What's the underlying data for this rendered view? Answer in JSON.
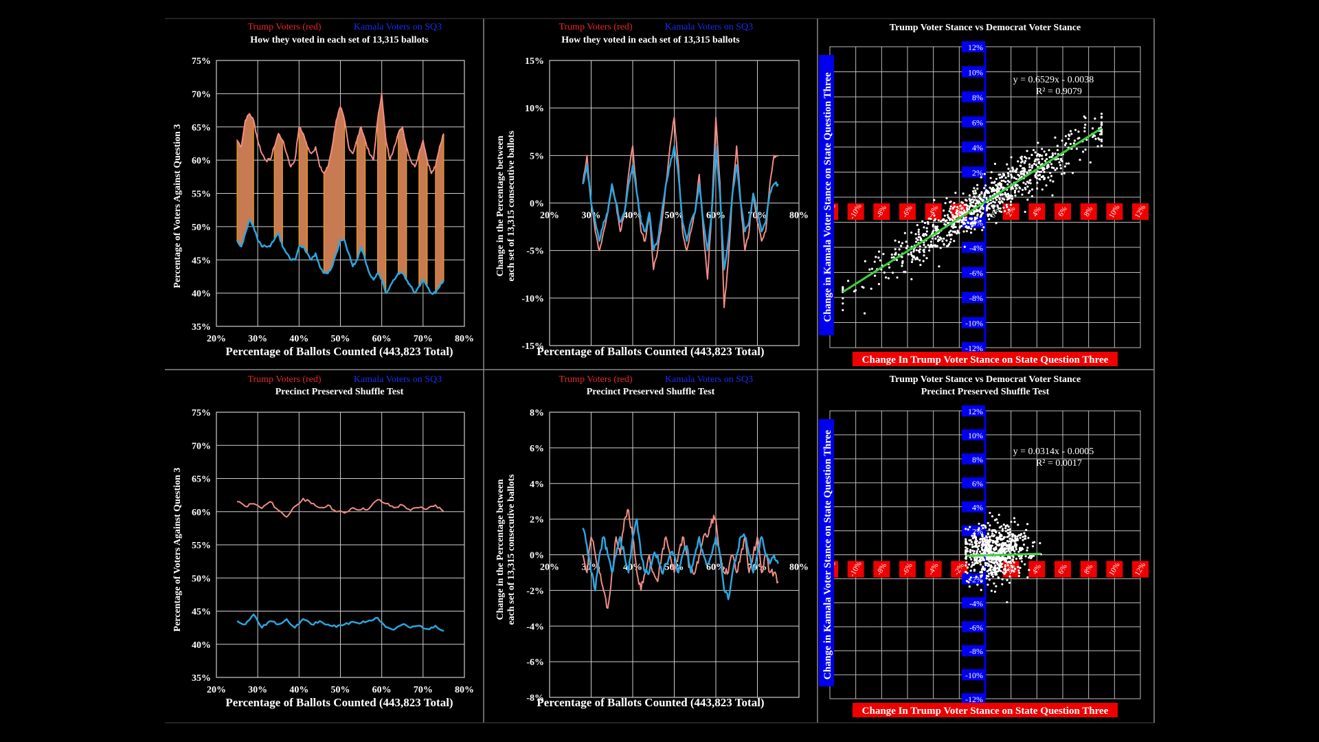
{
  "colors": {
    "trump": "#f08c85",
    "kamala": "#2aa6df",
    "legend_red": "#e8262a",
    "legend_blue": "#1a2cf0",
    "fill": "#c87a52",
    "fill_edge": "#e8a020",
    "trend": "#3ed13e",
    "red_box": "#ee0000",
    "blue_box": "#0000ee",
    "grid": "#cfcfcf",
    "frame": "#8a8a8a"
  },
  "chart_data": [
    {
      "id": "p1",
      "type": "line",
      "legend": {
        "red": "Trump Voters (red)",
        "blue": "Kamala Voters on SQ3"
      },
      "title": "How they voted in each set of 13,315 ballots",
      "xlabel": "Percentage of Ballots Counted (443,823 Total)",
      "ylabel": "Percentage of Voters Against Question 3",
      "xlim": [
        20,
        80
      ],
      "ylim": [
        35,
        75
      ],
      "xticks": [
        20,
        30,
        40,
        50,
        60,
        70,
        80
      ],
      "xtick_labels": [
        "20%",
        "30%",
        "40%",
        "50%",
        "60%",
        "70%",
        "80%"
      ],
      "yticks": [
        35,
        40,
        45,
        50,
        55,
        60,
        65,
        70,
        75
      ],
      "ytick_labels": [
        "35%",
        "40%",
        "45%",
        "50%",
        "55%",
        "60%",
        "65%",
        "70%",
        "75%"
      ],
      "shaded_between": true,
      "series": [
        {
          "name": "Trump",
          "x": [
            25,
            26,
            27,
            28,
            29,
            30,
            31,
            32,
            33,
            34,
            35,
            36,
            37,
            38,
            39,
            40,
            41,
            42,
            43,
            44,
            45,
            46,
            47,
            48,
            49,
            50,
            51,
            52,
            53,
            54,
            55,
            56,
            57,
            58,
            59,
            60,
            61,
            62,
            63,
            64,
            65,
            66,
            67,
            68,
            69,
            70,
            71,
            72,
            73,
            74,
            75
          ],
          "values": [
            63,
            62,
            66,
            67,
            66,
            63,
            61,
            60,
            60,
            62,
            64,
            63,
            61,
            59,
            60,
            65,
            64,
            62,
            61,
            62,
            59,
            58,
            59,
            62,
            66,
            68,
            66,
            62,
            61,
            63,
            65,
            63,
            61,
            60,
            66,
            70,
            63,
            60,
            62,
            64,
            65,
            62,
            60,
            59,
            61,
            63,
            60,
            58,
            59,
            62,
            64
          ]
        },
        {
          "name": "Kamala",
          "x": [
            25,
            26,
            27,
            28,
            29,
            30,
            31,
            32,
            33,
            34,
            35,
            36,
            37,
            38,
            39,
            40,
            41,
            42,
            43,
            44,
            45,
            46,
            47,
            48,
            49,
            50,
            51,
            52,
            53,
            54,
            55,
            56,
            57,
            58,
            59,
            60,
            61,
            62,
            63,
            64,
            65,
            66,
            67,
            68,
            69,
            70,
            71,
            72,
            73,
            74,
            75
          ],
          "values": [
            48,
            47,
            49,
            51,
            50,
            48,
            47,
            47,
            47,
            48,
            49,
            47,
            46,
            45,
            45,
            47,
            47,
            46,
            45,
            46,
            44,
            43,
            43,
            44,
            46,
            48,
            48,
            46,
            44,
            45,
            47,
            45,
            43,
            42,
            43,
            42,
            40,
            41,
            42,
            43,
            43,
            42,
            41,
            40,
            41,
            42,
            41,
            40,
            40,
            41,
            42
          ]
        }
      ]
    },
    {
      "id": "p2",
      "type": "line",
      "legend": {
        "red": "Trump Voters (red)",
        "blue": "Kamala Voters on SQ3"
      },
      "title": "How they voted in each set of 13,315 ballots",
      "xlabel": "Percentage of Ballots Counted (443,823 Total)",
      "ylabel_line1": "Change in the Percentage between",
      "ylabel_line2": "each set of 13,315  consecutive ballots",
      "xlim": [
        20,
        80
      ],
      "ylim": [
        -15,
        15
      ],
      "xticks": [
        20,
        30,
        40,
        50,
        60,
        70,
        80
      ],
      "xtick_labels": [
        "20%",
        "30%",
        "40%",
        "50%",
        "60%",
        "70%",
        "80%"
      ],
      "yticks": [
        -15,
        -10,
        -5,
        0,
        5,
        10,
        15
      ],
      "ytick_labels": [
        "-15%",
        "-10%",
        "-5%",
        "0%",
        "5%",
        "10%",
        "15%"
      ],
      "series": [
        {
          "name": "Trump",
          "x": [
            28,
            29,
            30,
            31,
            32,
            33,
            34,
            35,
            36,
            37,
            38,
            39,
            40,
            41,
            42,
            43,
            44,
            45,
            46,
            47,
            48,
            49,
            50,
            51,
            52,
            53,
            54,
            55,
            56,
            57,
            58,
            59,
            60,
            61,
            62,
            63,
            64,
            65,
            66,
            67,
            68,
            69,
            70,
            71,
            72,
            73,
            74,
            75
          ],
          "values": [
            2,
            5,
            0,
            -3,
            -5,
            -3,
            -1,
            2,
            0,
            -3,
            -1,
            3,
            6,
            1,
            -3,
            -4,
            -1,
            -7,
            -5,
            -2,
            2,
            6,
            9,
            4,
            -3,
            -5,
            -3,
            -1,
            3,
            -3,
            -8,
            -1,
            9,
            2,
            -11,
            -6,
            1,
            6,
            0,
            -5,
            -3,
            1,
            -2,
            -4,
            -3,
            2,
            5,
            5
          ]
        },
        {
          "name": "Kamala",
          "x": [
            28,
            29,
            30,
            31,
            32,
            33,
            34,
            35,
            36,
            37,
            38,
            39,
            40,
            41,
            42,
            43,
            44,
            45,
            46,
            47,
            48,
            49,
            50,
            51,
            52,
            53,
            54,
            55,
            56,
            57,
            58,
            59,
            60,
            61,
            62,
            63,
            64,
            65,
            66,
            67,
            68,
            69,
            70,
            71,
            72,
            73,
            74,
            75
          ],
          "values": [
            2,
            4,
            0,
            -2,
            -4,
            -2,
            -1,
            2,
            0,
            -2,
            -1,
            2,
            4,
            1,
            -2,
            -3,
            -1,
            -5,
            -4,
            -1,
            2,
            4,
            6,
            3,
            -2,
            -4,
            -2,
            -1,
            2,
            -2,
            -5,
            -1,
            6,
            1,
            -7,
            -4,
            1,
            4,
            0,
            -3,
            -2,
            1,
            -1,
            -3,
            -2,
            1,
            2,
            2
          ]
        }
      ]
    },
    {
      "id": "p3",
      "type": "scatter",
      "title": "Trump Voter Stance vs Democrat Voter Stance",
      "xlabel": "Change In Trump Voter Stance on State Question Three",
      "ylabel": "Change in Kamala Voter Stance on State Question Three",
      "xlim": [
        -12,
        12
      ],
      "ylim": [
        -12,
        12
      ],
      "xtick_labels": [
        "-12%",
        "-10%",
        "-8%",
        "-6%",
        "-4%",
        "-2%",
        "0%",
        "2%",
        "4%",
        "6%",
        "8%",
        "10%",
        "12%"
      ],
      "ytick_labels": [
        "-12%",
        "-10%",
        "-8%",
        "-6%",
        "-4%",
        "-2%",
        "0%",
        "2%",
        "4%",
        "6%",
        "8%",
        "10%",
        "12%"
      ],
      "equation": "y = 0.6529x - 0.0038",
      "r2": "R² = 0.9079",
      "trend": {
        "slope": 0.6529,
        "intercept": -0.38,
        "x_range": [
          -11,
          9
        ]
      },
      "scatter": {
        "n": 900,
        "x_mean": 0,
        "x_sd": 4.4,
        "noise_sd": 0.9
      }
    },
    {
      "id": "p4",
      "type": "line",
      "legend": {
        "red": "Trump Voters (red)",
        "blue": "Kamala Voters on SQ3"
      },
      "title": "Precinct Preserved Shuffle Test",
      "xlabel": "Percentage of Ballots Counted (443,823 Total)",
      "ylabel": "Percentage of Voters Against Question 3",
      "xlim": [
        20,
        80
      ],
      "ylim": [
        35,
        75
      ],
      "xticks": [
        20,
        30,
        40,
        50,
        60,
        70,
        80
      ],
      "xtick_labels": [
        "20%",
        "30%",
        "40%",
        "50%",
        "60%",
        "70%",
        "80%"
      ],
      "yticks": [
        35,
        40,
        45,
        50,
        55,
        60,
        65,
        70,
        75
      ],
      "ytick_labels": [
        "35%",
        "40%",
        "45%",
        "50%",
        "55%",
        "60%",
        "65%",
        "70%",
        "75%"
      ],
      "series": [
        {
          "name": "Trump",
          "x": [
            25,
            27,
            29,
            31,
            33,
            35,
            37,
            39,
            41,
            43,
            45,
            47,
            49,
            51,
            53,
            55,
            57,
            59,
            61,
            63,
            65,
            67,
            69,
            71,
            73,
            75
          ],
          "values": [
            61.5,
            60.8,
            61.2,
            60.5,
            61.5,
            60.2,
            59.2,
            60.8,
            62.0,
            61.2,
            60.6,
            61.0,
            60.0,
            59.8,
            60.6,
            60.3,
            60.5,
            61.8,
            61.2,
            60.6,
            61.0,
            60.2,
            60.6,
            60.4,
            61.0,
            60.0
          ]
        },
        {
          "name": "Kamala",
          "x": [
            25,
            27,
            29,
            31,
            33,
            35,
            37,
            39,
            41,
            43,
            45,
            47,
            49,
            51,
            53,
            55,
            57,
            59,
            61,
            63,
            65,
            67,
            69,
            71,
            73,
            75
          ],
          "values": [
            43.5,
            43.0,
            44.5,
            42.5,
            43.5,
            43.0,
            43.8,
            42.5,
            43.8,
            43.0,
            43.5,
            43.0,
            42.6,
            43.0,
            43.4,
            43.2,
            43.6,
            44.0,
            42.6,
            42.2,
            43.0,
            42.5,
            42.8,
            42.3,
            42.8,
            42.0
          ]
        }
      ]
    },
    {
      "id": "p5",
      "type": "line",
      "legend": {
        "red": "Trump Voters (red)",
        "blue": "Kamala Voters on SQ3"
      },
      "title": "Precinct Preserved Shuffle Test",
      "xlabel": "Percentage of Ballots Counted (443,823 Total)",
      "ylabel_line1": "Change in the Percentage between",
      "ylabel_line2": "each set of 13,315  consecutive ballots",
      "xlim": [
        20,
        80
      ],
      "ylim": [
        -8,
        8
      ],
      "xticks": [
        20,
        30,
        40,
        50,
        60,
        70,
        80
      ],
      "xtick_labels": [
        "20%",
        "30%",
        "40%",
        "50%",
        "60%",
        "70%",
        "80%"
      ],
      "yticks": [
        -8,
        -6,
        -4,
        -2,
        0,
        2,
        4,
        6,
        8
      ],
      "ytick_labels": [
        "-8%",
        "-6%",
        "-4%",
        "-2%",
        "0%",
        "2%",
        "4%",
        "6%",
        "8%"
      ],
      "series": [
        {
          "name": "Trump",
          "x": [
            28,
            29,
            30,
            31,
            32,
            33,
            34,
            35,
            36,
            37,
            38,
            39,
            40,
            41,
            42,
            43,
            44,
            45,
            46,
            47,
            48,
            49,
            50,
            51,
            52,
            53,
            54,
            55,
            56,
            57,
            58,
            59,
            60,
            61,
            62,
            63,
            64,
            65,
            66,
            67,
            68,
            69,
            70,
            71,
            72,
            73,
            74,
            75
          ],
          "values": [
            0,
            -1,
            1,
            0,
            -1,
            -2,
            -3,
            -1,
            1,
            0,
            2,
            2.5,
            1,
            -1,
            -2,
            -1,
            0,
            -1,
            -1.5,
            0,
            1,
            0,
            -1,
            0,
            1,
            0,
            -1,
            -1,
            0,
            1,
            1,
            2,
            2,
            0,
            -1,
            -1,
            0,
            -1,
            0,
            1,
            -1,
            0,
            1,
            -1,
            0,
            -1,
            -1,
            -1.5
          ]
        },
        {
          "name": "Kamala",
          "x": [
            28,
            29,
            30,
            31,
            32,
            33,
            34,
            35,
            36,
            37,
            38,
            39,
            40,
            41,
            42,
            43,
            44,
            45,
            46,
            47,
            48,
            49,
            50,
            51,
            52,
            53,
            54,
            55,
            56,
            57,
            58,
            59,
            60,
            61,
            62,
            63,
            64,
            65,
            66,
            67,
            68,
            69,
            70,
            71,
            72,
            73,
            74,
            75
          ],
          "values": [
            1.5,
            0.5,
            -1,
            -2,
            0,
            1,
            0,
            -1,
            0,
            1,
            0,
            -1,
            1,
            2,
            0,
            -1,
            -1,
            0,
            0,
            -1,
            -0.5,
            0,
            0,
            -1,
            0,
            0.5,
            -1,
            0,
            1,
            0,
            -0.5,
            0,
            1,
            0,
            -2,
            -2.5,
            -1,
            0,
            1,
            1,
            0,
            -1,
            0,
            1,
            0,
            -0.5,
            0,
            -0.5
          ]
        }
      ]
    },
    {
      "id": "p6",
      "type": "scatter",
      "title": "Trump Voter Stance vs Democrat Voter Stance",
      "subtitle": "Precinct Preserved Shuffle Test",
      "xlabel": "Change In Trump Voter Stance on State Question Three",
      "ylabel": "Change in Kamala Voter Stance on State Question Three",
      "xlim": [
        -12,
        12
      ],
      "ylim": [
        -12,
        12
      ],
      "xtick_labels": [
        "-12%",
        "-10%",
        "-8%",
        "-6%",
        "-4%",
        "-2%",
        "0%",
        "2%",
        "4%",
        "6%",
        "8%",
        "10%",
        "12%"
      ],
      "ytick_labels": [
        "-12%",
        "-10%",
        "-8%",
        "-6%",
        "-4%",
        "-2%",
        "0%",
        "2%",
        "4%",
        "6%",
        "8%",
        "10%",
        "12%"
      ],
      "equation": "y = 0.0314x - 0.0005",
      "r2": "R² = 0.0017",
      "trend": {
        "slope": 0.0314,
        "intercept": -0.05,
        "x_range": [
          -1.4,
          4.3
        ]
      },
      "scatter": {
        "n": 700,
        "x_mean": 0.8,
        "x_sd": 1.2,
        "noise_sd": 1.1
      }
    }
  ]
}
